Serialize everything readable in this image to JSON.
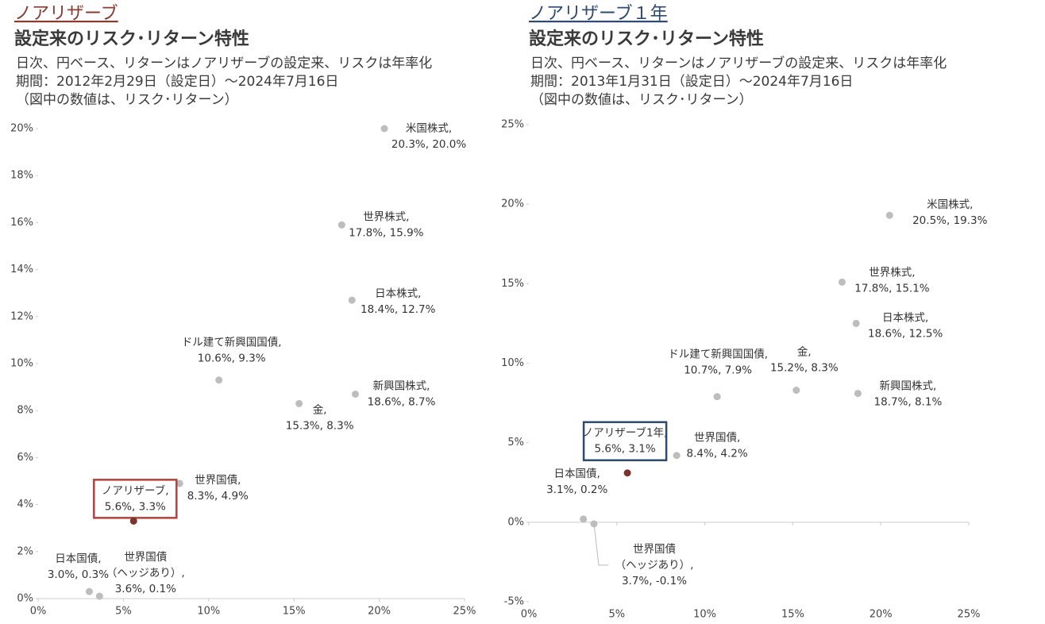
{
  "chart_data": [
    {
      "type": "scatter",
      "heading": "ノアリザーブ",
      "title": "設定来のリスク･リターン特性",
      "subtitle": [
        "日次、円ベース、リターンはノアリザーブの設定来、リスクは年率化",
        "期間：2012年2月29日（設定日）～2024年7月16日",
        "（図中の数値は、リスク･リターン）"
      ],
      "theme_color": "#8b3a32",
      "box_color": "#b5413a",
      "highlight": 7,
      "categories": [
        [
          "米国株式,"
        ],
        [
          "世界株式,"
        ],
        [
          "日本株式,"
        ],
        [
          "ドル建て新興国国債,"
        ],
        [
          "新興国株式,"
        ],
        [
          "金,"
        ],
        [
          "世界国債,"
        ],
        [
          "ノアリザーブ,"
        ],
        [
          "日本国債,"
        ],
        [
          "世界国債",
          "（ヘッジあり）,"
        ]
      ],
      "x": [
        20.3,
        17.8,
        18.4,
        10.6,
        18.6,
        15.3,
        8.3,
        5.6,
        3.0,
        3.6
      ],
      "values": [
        20.0,
        15.9,
        12.7,
        9.3,
        8.7,
        8.3,
        4.9,
        3.3,
        0.3,
        0.1
      ],
      "value_labels": [
        "20.3%, 20.0%",
        "17.8%, 15.9%",
        "18.4%, 12.7%",
        "10.6%, 9.3%",
        "18.6%, 8.7%",
        "15.3%, 8.3%",
        "8.3%, 4.9%",
        "5.6%, 3.3%",
        "3.0%, 0.3%",
        "3.6%, 0.1%"
      ],
      "colors": [
        "#bdbdbd",
        "#bdbdbd",
        "#bdbdbd",
        "#bdbdbd",
        "#bdbdbd",
        "#bdbdbd",
        "#bdbdbd",
        "#7a3530",
        "#bdbdbd",
        "#bdbdbd"
      ],
      "xlim": [
        0,
        25
      ],
      "xticks": [
        {
          "value": 0,
          "label": "0%"
        },
        {
          "value": 5,
          "label": "5%"
        },
        {
          "value": 10,
          "label": "10%"
        },
        {
          "value": 15,
          "label": "15%"
        },
        {
          "value": 20,
          "label": "20%"
        },
        {
          "value": 25,
          "label": "25%"
        }
      ],
      "ylim": [
        0,
        20
      ],
      "yticks": [
        {
          "value": 0,
          "label": "0%"
        },
        {
          "value": 2,
          "label": "2%"
        },
        {
          "value": 4,
          "label": "4%"
        },
        {
          "value": 6,
          "label": "6%"
        },
        {
          "value": 8,
          "label": "8%"
        },
        {
          "value": 10,
          "label": "10%"
        },
        {
          "value": 12,
          "label": "12%"
        },
        {
          "value": 14,
          "label": "14%"
        },
        {
          "value": 16,
          "label": "16%"
        },
        {
          "value": 18,
          "label": "18%"
        },
        {
          "value": 20,
          "label": "20%"
        }
      ]
    },
    {
      "type": "scatter",
      "heading": "ノアリザーブ１年",
      "title": "設定来のリスク･リターン特性",
      "subtitle": [
        "日次、円ベース、リターンはノアリザーブの設定来、リスクは年率化",
        "期間：2013年1月31日（設定日）～2024年7月16日",
        "（図中の数値は、リスク･リターン）"
      ],
      "theme_color": "#2e4a72",
      "box_color": "#2e4a72",
      "highlight": 7,
      "categories": [
        [
          "米国株式,"
        ],
        [
          "世界株式,"
        ],
        [
          "日本株式,"
        ],
        [
          "ドル建て新興国国債,"
        ],
        [
          "金,"
        ],
        [
          "新興国株式,"
        ],
        [
          "世界国債,"
        ],
        [
          "ノアリザーブ1年,"
        ],
        [
          "日本国債,"
        ],
        [
          "世界国債",
          "（ヘッジあり）,"
        ]
      ],
      "x": [
        20.5,
        17.8,
        18.6,
        10.7,
        15.2,
        18.7,
        8.4,
        5.6,
        3.1,
        3.7
      ],
      "values": [
        19.3,
        15.1,
        12.5,
        7.9,
        8.3,
        8.1,
        4.2,
        3.1,
        0.2,
        -0.1
      ],
      "value_labels": [
        "20.5%, 19.3%",
        "17.8%, 15.1%",
        "18.6%, 12.5%",
        "10.7%, 7.9%",
        "15.2%, 8.3%",
        "18.7%, 8.1%",
        "8.4%, 4.2%",
        "5.6%, 3.1%",
        "3.1%, 0.2%",
        "3.7%, -0.1%"
      ],
      "colors": [
        "#bdbdbd",
        "#bdbdbd",
        "#bdbdbd",
        "#bdbdbd",
        "#bdbdbd",
        "#bdbdbd",
        "#bdbdbd",
        "#7a3530",
        "#bdbdbd",
        "#bdbdbd"
      ],
      "xlim": [
        0,
        25
      ],
      "xticks": [
        {
          "value": 0,
          "label": "0%"
        },
        {
          "value": 5,
          "label": "5%"
        },
        {
          "value": 10,
          "label": "10%"
        },
        {
          "value": 15,
          "label": "15%"
        },
        {
          "value": 20,
          "label": "20%"
        },
        {
          "value": 25,
          "label": "25%"
        }
      ],
      "ylim": [
        -5,
        25
      ],
      "yticks": [
        {
          "value": -5,
          "label": "-5%"
        },
        {
          "value": 0,
          "label": "0%"
        },
        {
          "value": 5,
          "label": "5%"
        },
        {
          "value": 10,
          "label": "10%"
        },
        {
          "value": 15,
          "label": "15%"
        },
        {
          "value": 20,
          "label": "20%"
        },
        {
          "value": 25,
          "label": "25%"
        }
      ]
    }
  ]
}
